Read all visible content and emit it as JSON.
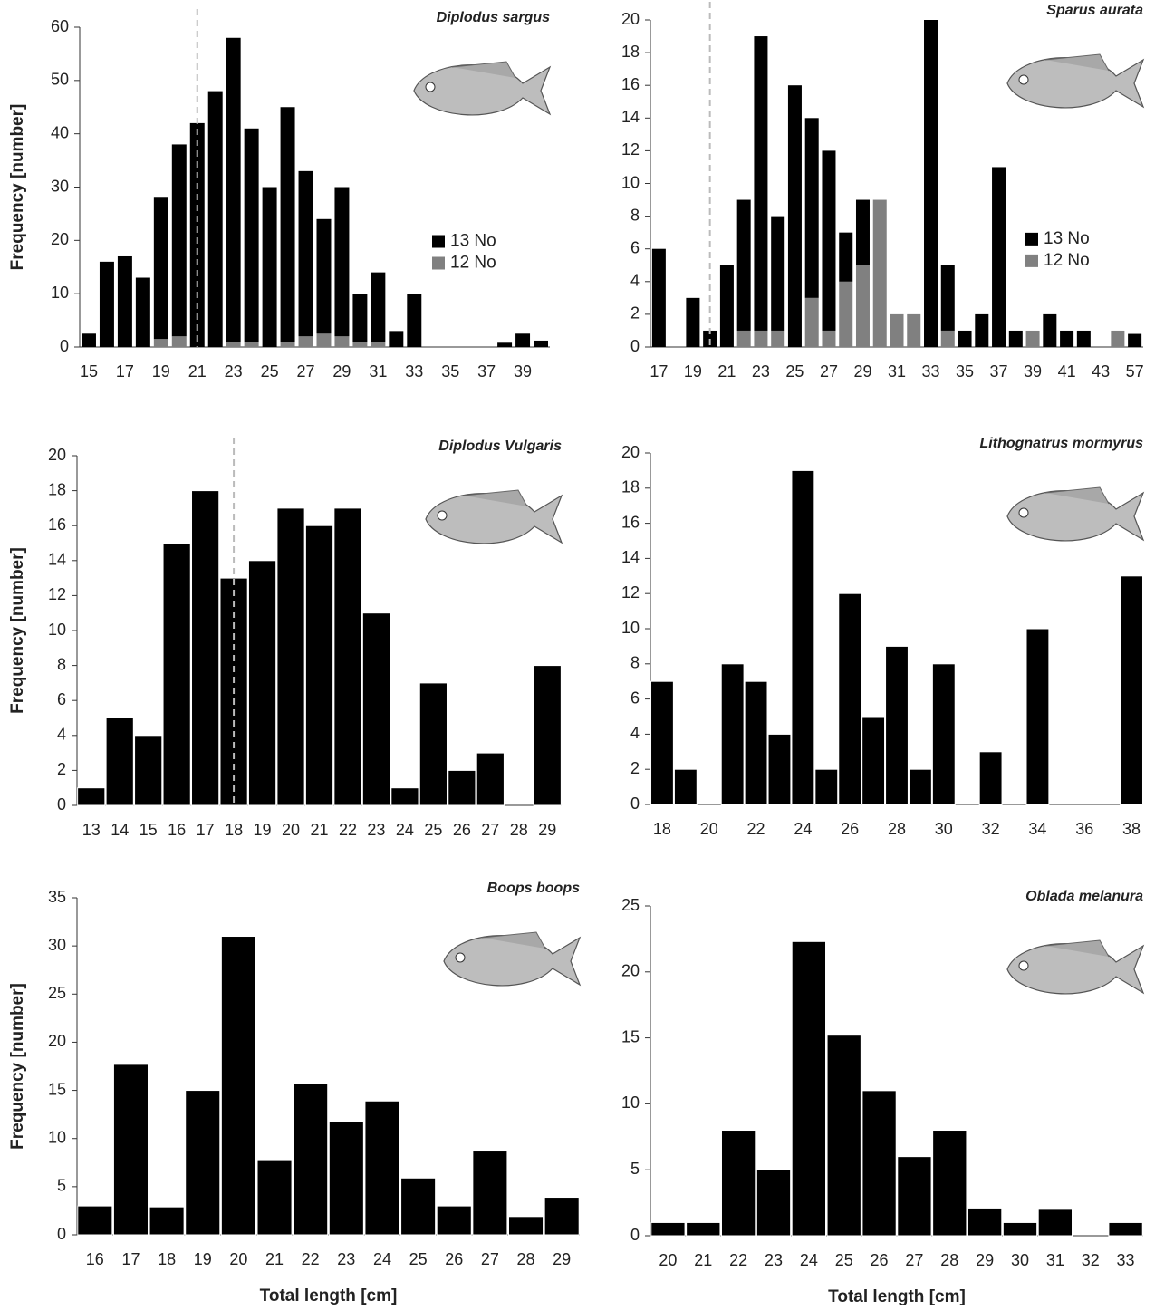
{
  "chart_data": [
    {
      "type": "bar",
      "title": "Diplodus sargus",
      "y_label": "Frequency [number]",
      "categories": [
        "15",
        null,
        "17",
        null,
        "19",
        null,
        "21",
        null,
        "23",
        null,
        "25",
        null,
        "27",
        null,
        "29",
        null,
        "31",
        null,
        "33",
        null,
        "35",
        null,
        "37",
        null,
        "39",
        null
      ],
      "series": [
        {
          "name": "13 No",
          "color": "#000000",
          "values": [
            2.5,
            16,
            17,
            13,
            26.5,
            36,
            42,
            48,
            57,
            40,
            30,
            44,
            31,
            21.5,
            28,
            9,
            13,
            3,
            10,
            0,
            0,
            0,
            0,
            0.8,
            2.5,
            1.2
          ]
        },
        {
          "name": "12 No",
          "color": "#808080",
          "values": [
            0,
            0,
            0,
            0,
            1.5,
            2,
            0,
            0,
            1,
            1,
            0,
            1,
            2,
            2.5,
            2,
            1,
            1,
            0,
            0,
            0,
            0,
            0,
            0,
            0,
            0,
            0
          ]
        }
      ],
      "ylim": [
        0,
        60
      ],
      "yticks": [
        0,
        10,
        20,
        30,
        40,
        50,
        60
      ],
      "ref_line": 21,
      "legend": "right"
    },
    {
      "type": "bar",
      "title": "Sparus aurata",
      "categories": [
        "17",
        null,
        "19",
        null,
        "21",
        null,
        "23",
        null,
        "25",
        null,
        "27",
        null,
        "29",
        null,
        "31",
        null,
        "33",
        null,
        "35",
        null,
        "37",
        null,
        "39",
        null,
        "41",
        null,
        "43",
        null,
        "57"
      ],
      "series": [
        {
          "name": "13 No",
          "color": "#000000",
          "values": [
            6,
            0,
            3,
            1,
            5,
            8,
            18,
            7,
            16,
            11,
            11,
            3,
            4,
            0,
            0,
            0,
            20,
            4,
            1,
            2,
            11,
            1,
            0,
            2,
            1,
            1,
            0,
            0,
            0.8
          ]
        },
        {
          "name": "12 No",
          "color": "#808080",
          "values": [
            0,
            0,
            0,
            0,
            0,
            1,
            1,
            1,
            0,
            3,
            1,
            4,
            5,
            9,
            2,
            2,
            0,
            1,
            0,
            0,
            0,
            0,
            1,
            0,
            0,
            0,
            0,
            1,
            0
          ]
        }
      ],
      "ylim": [
        0,
        20
      ],
      "yticks": [
        0,
        2,
        4,
        6,
        8,
        10,
        12,
        14,
        16,
        18,
        20
      ],
      "ref_line": 20,
      "legend": "right"
    },
    {
      "type": "bar",
      "title": "Diplodus Vulgaris",
      "y_label": "Frequency [number]",
      "categories": [
        "13",
        "14",
        "15",
        "16",
        "17",
        "18",
        "19",
        "20",
        "21",
        "22",
        "23",
        "24",
        "25",
        "26",
        "27",
        "28",
        "29"
      ],
      "values": [
        1,
        5,
        4,
        15,
        18,
        13,
        14,
        17,
        16,
        17,
        11,
        1,
        7,
        2,
        3,
        0,
        8
      ],
      "color": "#000000",
      "ylim": [
        0,
        20
      ],
      "yticks": [
        0,
        2,
        4,
        6,
        8,
        10,
        12,
        14,
        16,
        18,
        20
      ],
      "ref_line": 18
    },
    {
      "type": "bar",
      "title": "Lithognatrus mormyrus",
      "categories": [
        "18",
        null,
        "20",
        null,
        "22",
        null,
        "24",
        null,
        "26",
        null,
        "28",
        null,
        "30",
        null,
        "32",
        null,
        "34",
        null,
        "36",
        null,
        "38"
      ],
      "values": [
        7,
        2,
        0,
        8,
        7,
        4,
        19,
        2,
        12,
        5,
        9,
        2,
        8,
        0,
        3,
        0,
        10,
        0,
        0,
        0,
        13
      ],
      "color": "#000000",
      "ylim": [
        0,
        20
      ],
      "yticks": [
        0,
        2,
        4,
        6,
        8,
        10,
        12,
        14,
        16,
        18,
        20
      ]
    },
    {
      "type": "bar",
      "title": "Boops boops",
      "y_label": "Frequency [number]",
      "x_label": "Total length [cm]",
      "categories": [
        "16",
        "17",
        "18",
        "19",
        "20",
        "21",
        "22",
        "23",
        "24",
        "25",
        "26",
        "27",
        "28",
        "29"
      ],
      "values": [
        3,
        17.7,
        2.9,
        15,
        31,
        7.8,
        15.7,
        11.8,
        13.9,
        5.9,
        3,
        8.7,
        1.9,
        3.9
      ],
      "color": "#000000",
      "ylim": [
        0,
        35
      ],
      "yticks": [
        0,
        5,
        10,
        15,
        20,
        25,
        30,
        35
      ]
    },
    {
      "type": "bar",
      "title": "Oblada melanura",
      "x_label": "Total length [cm]",
      "categories": [
        "20",
        "21",
        "22",
        "23",
        "24",
        "25",
        "26",
        "27",
        "28",
        "29",
        "30",
        "31",
        "32",
        "33"
      ],
      "values": [
        1,
        1,
        8,
        5,
        22.3,
        15.2,
        11,
        6,
        8,
        2.1,
        1,
        2,
        0,
        1
      ],
      "color": "#000000",
      "ylim": [
        0,
        25
      ],
      "yticks": [
        0,
        5,
        10,
        15,
        20,
        25
      ]
    }
  ]
}
